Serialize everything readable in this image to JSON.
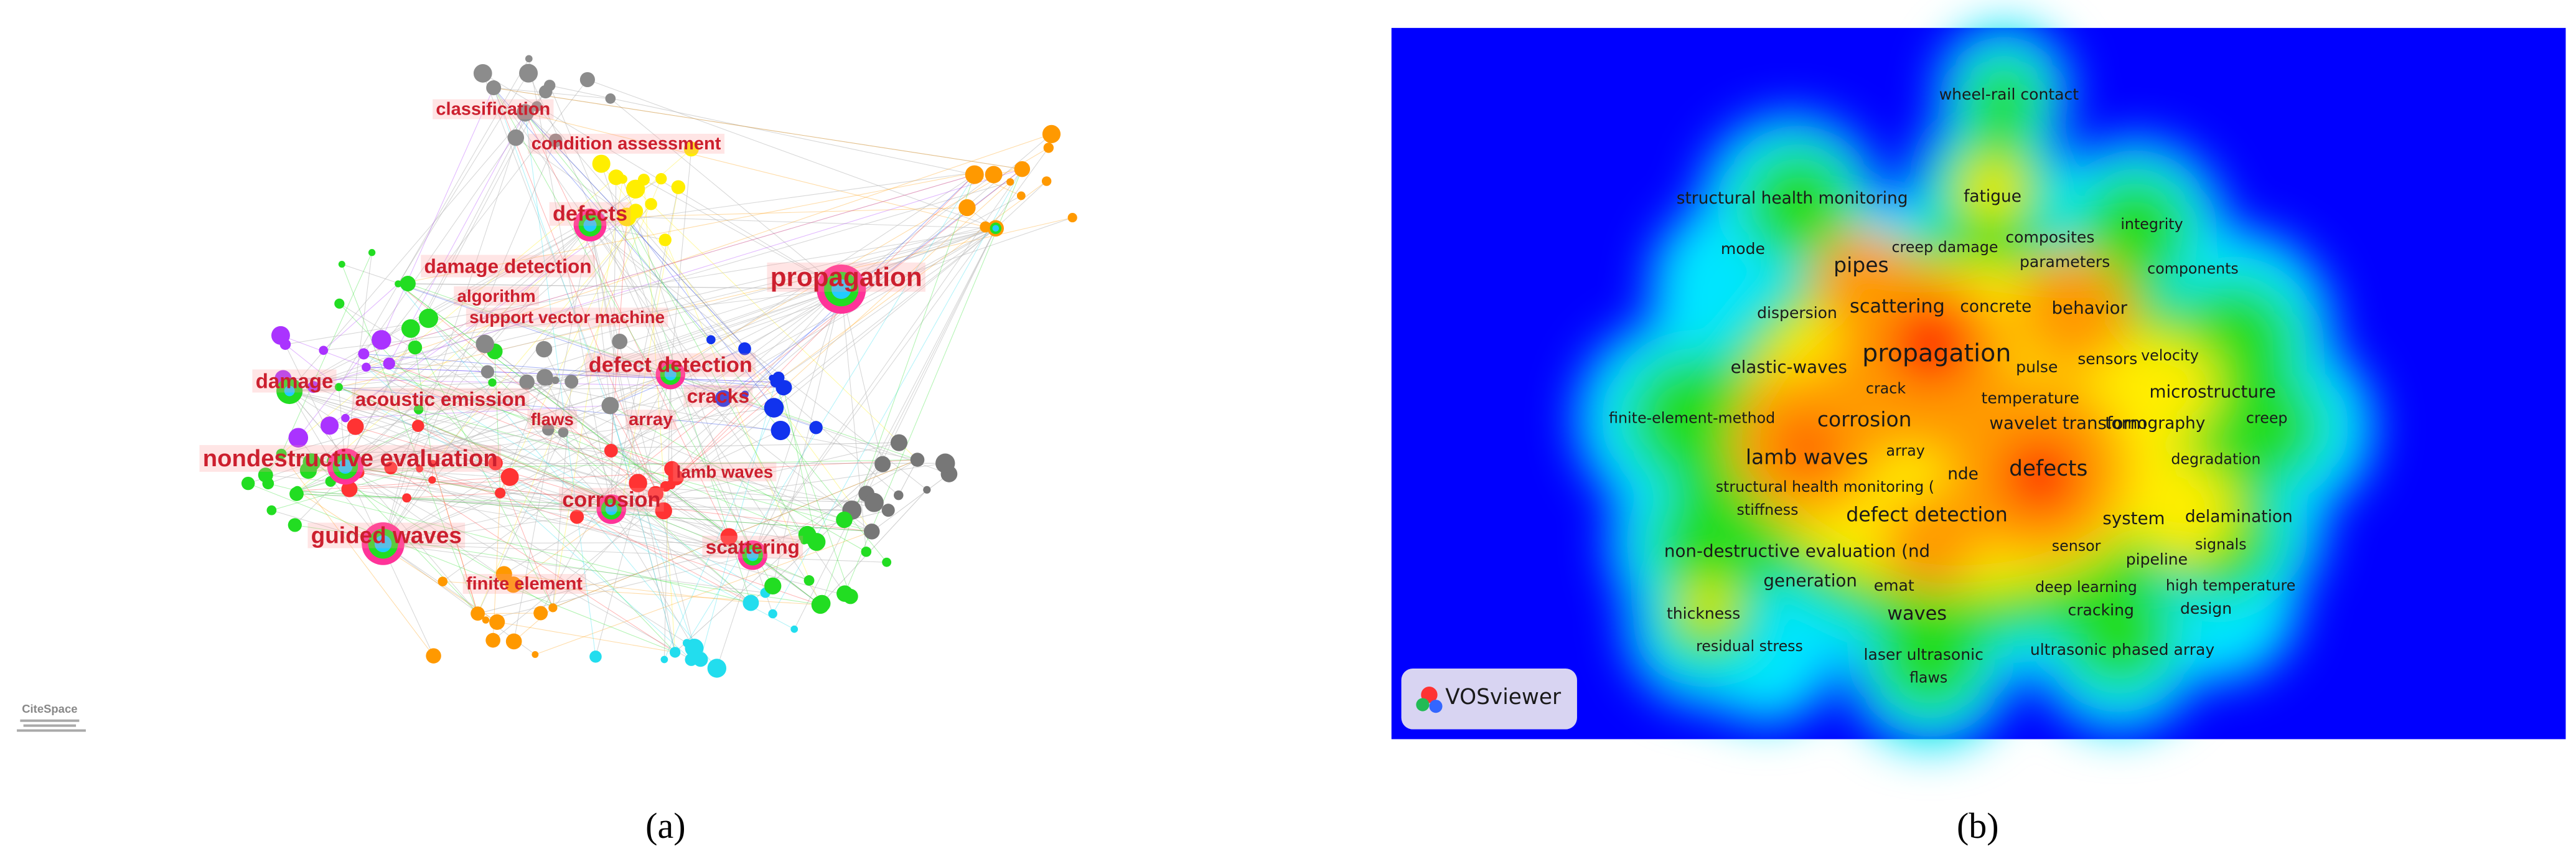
{
  "panel_a": {
    "caption": "(a)",
    "logo": "CiteSpace",
    "labels": [
      "classification",
      "condition assessment",
      "defects",
      "damage detection",
      "algorithm",
      "support vector machine",
      "propagation",
      "defect detection",
      "cracks",
      "damage",
      "acoustic emission",
      "flaws",
      "array",
      "nondestructive evaluation",
      "lamb waves",
      "corrosion",
      "guided waves",
      "scattering",
      "finite element"
    ]
  },
  "panel_b": {
    "caption": "(b)",
    "logo": "VOSviewer",
    "labels": [
      "wheel-rail contact",
      "structural health monitoring",
      "fatigue",
      "integrity",
      "mode",
      "creep damage",
      "composites",
      "parameters",
      "components",
      "pipes",
      "dispersion",
      "scattering",
      "concrete",
      "behavior",
      "propagation",
      "sensors",
      "velocity",
      "elastic-waves",
      "pulse",
      "crack",
      "temperature",
      "microstructure",
      "finite-element-method",
      "corrosion",
      "wavelet transform",
      "tomography",
      "creep",
      "array",
      "lamb waves",
      "defects",
      "degradation",
      "nde",
      "structural health monitoring (",
      "stiffness",
      "defect detection",
      "system",
      "delamination",
      "sensor",
      "signals",
      "non-destructive evaluation (nd",
      "pipeline",
      "generation",
      "emat",
      "deep learning",
      "high temperature",
      "thickness",
      "waves",
      "cracking",
      "design",
      "residual stress",
      "laser ultrasonic",
      "ultrasonic phased array",
      "flaws"
    ]
  }
}
